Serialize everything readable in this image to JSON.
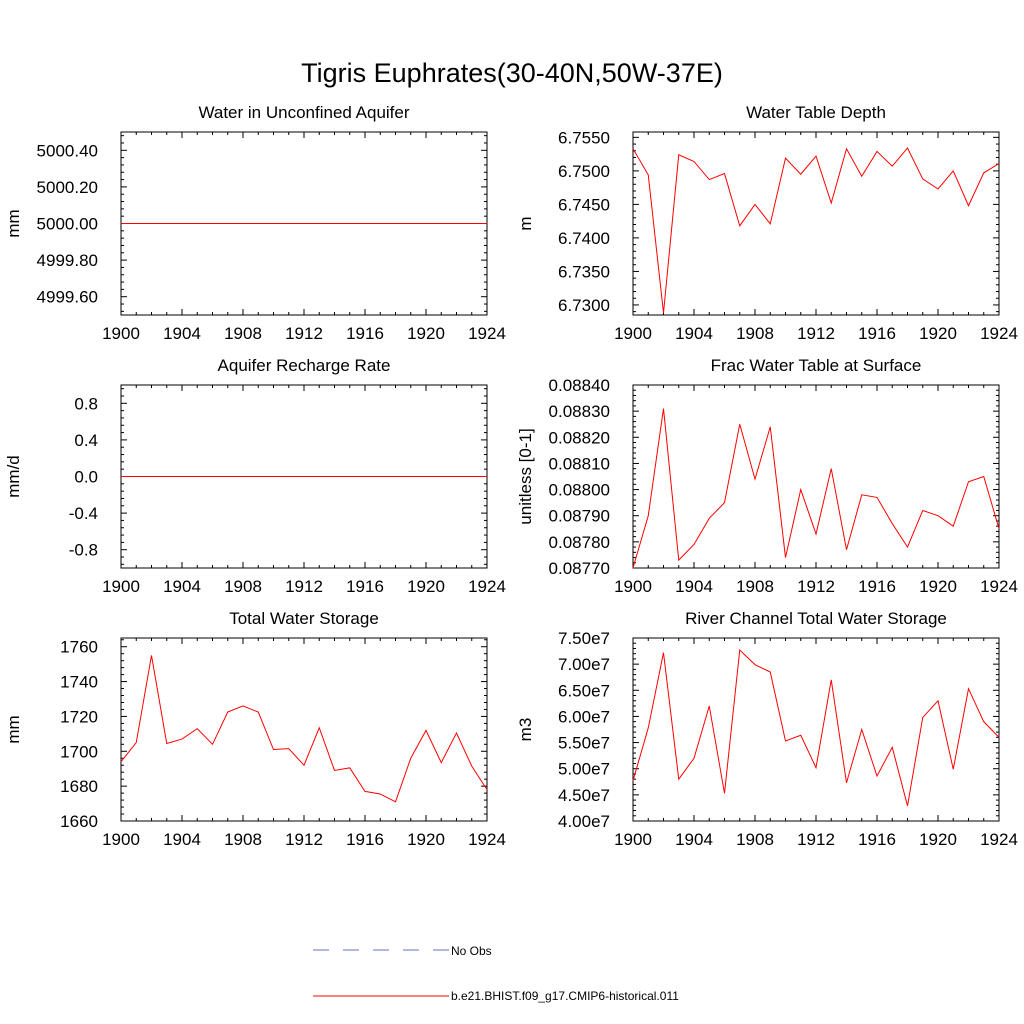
{
  "title": "Tigris Euphrates(30-40N,50W-37E)",
  "series_color": "#ff0000",
  "obs_color": "#6070c0",
  "legend": {
    "obs_label": "No Obs",
    "model_label": "b.e21.BHIST.f09_g17.CMIP6-historical.011"
  },
  "chart_data": [
    {
      "type": "line",
      "title": "Water in Unconfined Aquifer",
      "ylabel": "mm",
      "xlim": [
        1900,
        1924
      ],
      "xticks": [
        1900,
        1904,
        1908,
        1912,
        1916,
        1920,
        1924
      ],
      "xticklabels": [
        "1900",
        "1904",
        "1908",
        "1912",
        "1916",
        "1920",
        "1924"
      ],
      "ylim": [
        4999.5,
        5000.5
      ],
      "yticks": [
        4999.6,
        4999.8,
        5000.0,
        5000.2,
        5000.4
      ],
      "yticklabels": [
        "4999.60",
        "4999.80",
        "5000.00",
        "5000.20",
        "5000.40"
      ],
      "x": [
        1900,
        1924
      ],
      "y": [
        5000.0,
        5000.0
      ]
    },
    {
      "type": "line",
      "title": "Water Table Depth",
      "ylabel": "m",
      "xlim": [
        1900,
        1924
      ],
      "xticks": [
        1900,
        1904,
        1908,
        1912,
        1916,
        1920,
        1924
      ],
      "xticklabels": [
        "1900",
        "1904",
        "1908",
        "1912",
        "1916",
        "1920",
        "1924"
      ],
      "ylim": [
        6.7285,
        6.7558
      ],
      "yticks": [
        6.73,
        6.735,
        6.74,
        6.745,
        6.75,
        6.755
      ],
      "yticklabels": [
        "6.7300",
        "6.7350",
        "6.7400",
        "6.7450",
        "6.7500",
        "6.7550"
      ],
      "x": [
        1900,
        1901,
        1902,
        1903,
        1904,
        1905,
        1906,
        1907,
        1908,
        1909,
        1910,
        1911,
        1912,
        1913,
        1914,
        1915,
        1916,
        1917,
        1918,
        1919,
        1920,
        1921,
        1922,
        1923,
        1924
      ],
      "y": [
        6.7533,
        6.7494,
        6.7288,
        6.7524,
        6.7514,
        6.7487,
        6.7496,
        6.7418,
        6.745,
        6.7421,
        6.7519,
        6.7495,
        6.7522,
        6.7452,
        6.7533,
        6.7492,
        6.7529,
        6.7507,
        6.7534,
        6.7488,
        6.7473,
        6.75,
        6.7448,
        6.7497,
        6.7511
      ]
    },
    {
      "type": "line",
      "title": "Aquifer Recharge Rate",
      "ylabel": "mm/d",
      "xlim": [
        1900,
        1924
      ],
      "xticks": [
        1900,
        1904,
        1908,
        1912,
        1916,
        1920,
        1924
      ],
      "xticklabels": [
        "1900",
        "1904",
        "1908",
        "1912",
        "1916",
        "1920",
        "1924"
      ],
      "ylim": [
        -1.0,
        1.0
      ],
      "yticks": [
        -0.8,
        -0.4,
        0.0,
        0.4,
        0.8
      ],
      "yticklabels": [
        "-0.8",
        "-0.4",
        "0.0",
        "0.4",
        "0.8"
      ],
      "x": [
        1900,
        1924
      ],
      "y": [
        0.0,
        0.0
      ]
    },
    {
      "type": "line",
      "title": "Frac Water Table at Surface",
      "ylabel": "unitless [0-1]",
      "xlim": [
        1900,
        1924
      ],
      "xticks": [
        1900,
        1904,
        1908,
        1912,
        1916,
        1920,
        1924
      ],
      "xticklabels": [
        "1900",
        "1904",
        "1908",
        "1912",
        "1916",
        "1920",
        "1924"
      ],
      "ylim": [
        0.0877,
        0.0884
      ],
      "yticks": [
        0.0877,
        0.0878,
        0.0879,
        0.088,
        0.0881,
        0.0882,
        0.0883,
        0.0884
      ],
      "yticklabels": [
        "0.08770",
        "0.08780",
        "0.08790",
        "0.08800",
        "0.08810",
        "0.08820",
        "0.08830",
        "0.08840"
      ],
      "x": [
        1900,
        1901,
        1902,
        1903,
        1904,
        1905,
        1906,
        1907,
        1908,
        1909,
        1910,
        1911,
        1912,
        1913,
        1914,
        1915,
        1916,
        1917,
        1918,
        1919,
        1920,
        1921,
        1922,
        1923,
        1924
      ],
      "y": [
        0.0877,
        0.0879,
        0.08831,
        0.08773,
        0.08779,
        0.08789,
        0.08795,
        0.08825,
        0.08804,
        0.08824,
        0.08774,
        0.088,
        0.08783,
        0.08808,
        0.08777,
        0.08798,
        0.08797,
        0.08787,
        0.08778,
        0.08792,
        0.0879,
        0.08786,
        0.08803,
        0.08805,
        0.08785
      ]
    },
    {
      "type": "line",
      "title": "Total Water Storage",
      "ylabel": "mm",
      "xlim": [
        1900,
        1924
      ],
      "xticks": [
        1900,
        1904,
        1908,
        1912,
        1916,
        1920,
        1924
      ],
      "xticklabels": [
        "1900",
        "1904",
        "1908",
        "1912",
        "1916",
        "1920",
        "1924"
      ],
      "ylim": [
        1660,
        1765
      ],
      "yticks": [
        1660,
        1680,
        1700,
        1720,
        1740,
        1760
      ],
      "yticklabels": [
        "1660",
        "1680",
        "1700",
        "1720",
        "1740",
        "1760"
      ],
      "x": [
        1900,
        1901,
        1902,
        1903,
        1904,
        1905,
        1906,
        1907,
        1908,
        1909,
        1910,
        1911,
        1912,
        1913,
        1914,
        1915,
        1916,
        1917,
        1918,
        1919,
        1920,
        1921,
        1922,
        1923,
        1924
      ],
      "y": [
        1694,
        1705,
        1755,
        1704.5,
        1707,
        1713,
        1704,
        1722.5,
        1726,
        1722.5,
        1701,
        1701.5,
        1692,
        1713.5,
        1689,
        1690.5,
        1677,
        1675.5,
        1671,
        1696,
        1712,
        1693.5,
        1710.5,
        1691.5,
        1678
      ]
    },
    {
      "type": "line",
      "title": "River Channel Total Water Storage",
      "ylabel": "m3",
      "xlim": [
        1900,
        1924
      ],
      "xticks": [
        1900,
        1904,
        1908,
        1912,
        1916,
        1920,
        1924
      ],
      "xticklabels": [
        "1900",
        "1904",
        "1908",
        "1912",
        "1916",
        "1920",
        "1924"
      ],
      "ylim": [
        40000000,
        75000000
      ],
      "yticks": [
        40000000,
        45000000,
        50000000,
        55000000,
        60000000,
        65000000,
        70000000,
        75000000
      ],
      "yticklabels": [
        "4.00e7",
        "4.50e7",
        "5.00e7",
        "5.50e7",
        "6.00e7",
        "6.50e7",
        "7.00e7",
        "7.50e7"
      ],
      "x": [
        1900,
        1901,
        1902,
        1903,
        1904,
        1905,
        1906,
        1907,
        1908,
        1909,
        1910,
        1911,
        1912,
        1913,
        1914,
        1915,
        1916,
        1917,
        1918,
        1919,
        1920,
        1921,
        1922,
        1923,
        1924
      ],
      "y": [
        47700000,
        57800000,
        72200000,
        48000000,
        52000000,
        62000000,
        45300000,
        72700000,
        69900000,
        68500000,
        55300000,
        56400000,
        50200000,
        67000000,
        47300000,
        57500000,
        48600000,
        54100000,
        42900000,
        59800000,
        63000000,
        49900000,
        65300000,
        59000000,
        56000000
      ]
    }
  ]
}
